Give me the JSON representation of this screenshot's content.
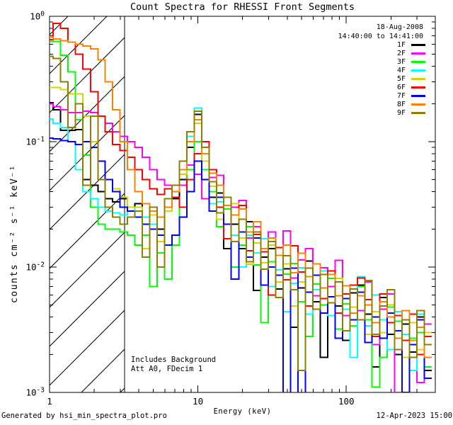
{
  "title": "Count Spectra for RHESSI Front Segments",
  "header": {
    "date": "18-Aug-2008",
    "time_range": "14:40:00 to 14:41:00"
  },
  "annotations": {
    "line1": "Includes Background",
    "line2": "Att A0, FDecim 1"
  },
  "footer": {
    "left": "Generated by hsi_min_spectra_plot.pro",
    "right": "12-Apr-2023 15:00"
  },
  "chart_data": {
    "type": "line",
    "subtype": "step-histogram",
    "title": "Count Spectra for RHESSI Front Segments",
    "xlabel": "Energy (keV)",
    "ylabel": "counts cm⁻² s⁻¹ keV⁻¹",
    "x_scale": "log",
    "y_scale": "log",
    "xlim": [
      1,
      398
    ],
    "ylim": [
      0.001,
      1
    ],
    "x_ticks": [
      1,
      10,
      100
    ],
    "y_tick_exponents": [
      0,
      -1,
      -2,
      -3
    ],
    "grid": false,
    "legend_position": "top-right-inside",
    "hatch_region_kev": [
      1.0,
      3.2
    ],
    "x": [
      1.0,
      1.12,
      1.26,
      1.41,
      1.58,
      1.78,
      2.0,
      2.24,
      2.51,
      2.82,
      3.16,
      3.55,
      3.98,
      4.47,
      5.01,
      5.62,
      6.31,
      7.08,
      7.94,
      8.91,
      10.0,
      11.2,
      12.6,
      14.1,
      15.8,
      17.8,
      20.0,
      22.4,
      25.1,
      28.2,
      31.6,
      35.5,
      39.8,
      44.7,
      50.1,
      56.2,
      63.1,
      70.8,
      79.4,
      89.1,
      100,
      112,
      126,
      141,
      158,
      178,
      200,
      224,
      251,
      282,
      316,
      355
    ],
    "series": [
      {
        "name": "1F",
        "color": "#000000",
        "values": [
          0.205,
          0.18,
          0.123,
          0.123,
          0.125,
          0.05,
          0.045,
          0.04,
          0.035,
          0.033,
          0.035,
          0.03,
          0.032,
          0.022,
          0.03,
          0.02,
          0.028,
          0.035,
          0.05,
          0.09,
          0.165,
          0.09,
          0.036,
          0.039,
          0.014,
          0.022,
          0.014,
          0.023,
          0.0065,
          0.012,
          0.014,
          0.0067,
          0.0097,
          0.0033,
          0.0068,
          0.0112,
          0.0053,
          0.0019,
          0.007,
          0.0049,
          0.0026,
          0.0062,
          0.0072,
          0.0042,
          0.0016,
          0.0057,
          0.0029,
          0.002,
          0.0035,
          0.0021,
          0.004,
          0.0015
        ]
      },
      {
        "name": "2F",
        "color": "#ff00ff",
        "values": [
          0.2,
          0.19,
          0.18,
          0.17,
          0.17,
          0.175,
          0.17,
          0.16,
          0.14,
          0.12,
          0.11,
          0.1,
          0.09,
          0.075,
          0.06,
          0.05,
          0.045,
          0.04,
          0.045,
          0.065,
          0.055,
          0.035,
          0.052,
          0.054,
          0.022,
          0.03,
          0.034,
          0.017,
          0.021,
          0.0096,
          0.019,
          0.0124,
          0.0194,
          0.0082,
          0.0114,
          0.014,
          0.0059,
          0.0099,
          0.007,
          0.0113,
          0.0041,
          0.0072,
          0.0045,
          0.0076,
          0.0024,
          0.0046,
          0.0061,
          0.001,
          0.0045,
          0.0027,
          0.0012,
          0.0035
        ]
      },
      {
        "name": "3F",
        "color": "#00ff00",
        "values": [
          0.63,
          0.63,
          0.49,
          0.36,
          0.15,
          0.078,
          0.03,
          0.022,
          0.02,
          0.02,
          0.019,
          0.018,
          0.015,
          0.018,
          0.007,
          0.013,
          0.008,
          0.015,
          0.03,
          0.06,
          0.1,
          0.06,
          0.04,
          0.021,
          0.029,
          0.01,
          0.015,
          0.021,
          0.0104,
          0.0036,
          0.011,
          0.0057,
          0.0088,
          0.0107,
          0.0053,
          0.0028,
          0.0073,
          0.005,
          0.0081,
          0.0032,
          0.0051,
          0.0034,
          0.007,
          0.0038,
          0.0011,
          0.0019,
          0.0048,
          0.0037,
          0.0019,
          0.0027,
          0.003,
          0.0016
        ]
      },
      {
        "name": "4F",
        "color": "#00ffff",
        "values": [
          0.152,
          0.14,
          0.13,
          0.1,
          0.06,
          0.04,
          0.035,
          0.03,
          0.028,
          0.027,
          0.026,
          0.03,
          0.028,
          0.025,
          0.022,
          0.025,
          0.03,
          0.04,
          0.06,
          0.11,
          0.185,
          0.08,
          0.032,
          0.033,
          0.036,
          0.018,
          0.01,
          0.018,
          0.013,
          0.0168,
          0.007,
          0.0095,
          0.0044,
          0.0074,
          0.0099,
          0.0042,
          0.0066,
          0.0093,
          0.0041,
          0.0059,
          0.0046,
          0.0019,
          0.0084,
          0.0034,
          0.006,
          0.0038,
          0.0022,
          0.0044,
          0.0029,
          0.0015,
          0.0042,
          0.0024
        ]
      },
      {
        "name": "5F",
        "color": "#d8d400",
        "values": [
          0.27,
          0.27,
          0.26,
          0.24,
          0.24,
          0.16,
          0.1,
          0.07,
          0.05,
          0.042,
          0.036,
          0.03,
          0.03,
          0.014,
          0.026,
          0.016,
          0.028,
          0.04,
          0.055,
          0.1,
          0.14,
          0.07,
          0.044,
          0.024,
          0.031,
          0.032,
          0.017,
          0.0105,
          0.0156,
          0.0108,
          0.015,
          0.0076,
          0.0106,
          0.0049,
          0.0076,
          0.0098,
          0.0046,
          0.0068,
          0.0052,
          0.0081,
          0.0031,
          0.0048,
          0.0059,
          0.0029,
          0.0044,
          0.003,
          0.005,
          0.0031,
          0.0019,
          0.0036,
          0.0022,
          0.003
        ]
      },
      {
        "name": "6F",
        "color": "#ff0000",
        "values": [
          0.65,
          0.88,
          0.8,
          0.62,
          0.5,
          0.38,
          0.25,
          0.16,
          0.12,
          0.095,
          0.085,
          0.075,
          0.06,
          0.05,
          0.042,
          0.038,
          0.042,
          0.036,
          0.03,
          0.05,
          0.08,
          0.1,
          0.06,
          0.03,
          0.0168,
          0.026,
          0.031,
          0.0135,
          0.0182,
          0.0132,
          0.006,
          0.0143,
          0.0079,
          0.0148,
          0.0091,
          0.0049,
          0.0086,
          0.0056,
          0.0093,
          0.0043,
          0.0061,
          0.0072,
          0.0082,
          0.0055,
          0.0028,
          0.0061,
          0.0036,
          0.0041,
          0.0026,
          0.0042,
          0.002,
          0.0028
        ]
      },
      {
        "name": "7F",
        "color": "#0000ff",
        "values": [
          0.107,
          0.105,
          0.102,
          0.1,
          0.095,
          0.1,
          0.09,
          0.07,
          0.05,
          0.04,
          0.03,
          0.028,
          0.025,
          0.022,
          0.02,
          0.018,
          0.015,
          0.018,
          0.025,
          0.04,
          0.07,
          0.05,
          0.028,
          0.036,
          0.022,
          0.008,
          0.019,
          0.012,
          0.017,
          0.0072,
          0.01,
          0.0086,
          0.0009,
          0.0098,
          0.0007,
          0.0063,
          0.0086,
          0.0043,
          0.0058,
          0.0027,
          0.0056,
          0.0038,
          0.0063,
          0.0025,
          0.004,
          0.0027,
          0.0043,
          0.0031,
          0.001,
          0.0024,
          0.0038,
          0.0013
        ]
      },
      {
        "name": "8F",
        "color": "#ff8000",
        "values": [
          0.68,
          0.66,
          0.64,
          0.62,
          0.6,
          0.58,
          0.55,
          0.45,
          0.3,
          0.18,
          0.1,
          0.06,
          0.04,
          0.032,
          0.028,
          0.025,
          0.03,
          0.04,
          0.06,
          0.1,
          0.15,
          0.08,
          0.056,
          0.045,
          0.031,
          0.026,
          0.029,
          0.019,
          0.023,
          0.014,
          0.017,
          0.0124,
          0.015,
          0.009,
          0.0129,
          0.0084,
          0.0106,
          0.0068,
          0.0087,
          0.0059,
          0.0071,
          0.0043,
          0.0059,
          0.005,
          0.0036,
          0.0053,
          0.004,
          0.0027,
          0.0045,
          0.0026,
          0.0033,
          0.0019
        ]
      },
      {
        "name": "9F",
        "color": "#8f7f00",
        "values": [
          0.48,
          0.46,
          0.3,
          0.13,
          0.2,
          0.045,
          0.16,
          0.05,
          0.03,
          0.025,
          0.022,
          0.025,
          0.028,
          0.012,
          0.03,
          0.01,
          0.035,
          0.045,
          0.07,
          0.12,
          0.175,
          0.09,
          0.048,
          0.027,
          0.036,
          0.016,
          0.024,
          0.011,
          0.019,
          0.0096,
          0.016,
          0.0057,
          0.0123,
          0.0066,
          0.0015,
          0.0098,
          0.0046,
          0.0087,
          0.0052,
          0.0076,
          0.0031,
          0.0067,
          0.0038,
          0.0078,
          0.0029,
          0.0049,
          0.0066,
          0.0022,
          0.0038,
          0.0019,
          0.0045,
          0.0024
        ]
      }
    ]
  }
}
